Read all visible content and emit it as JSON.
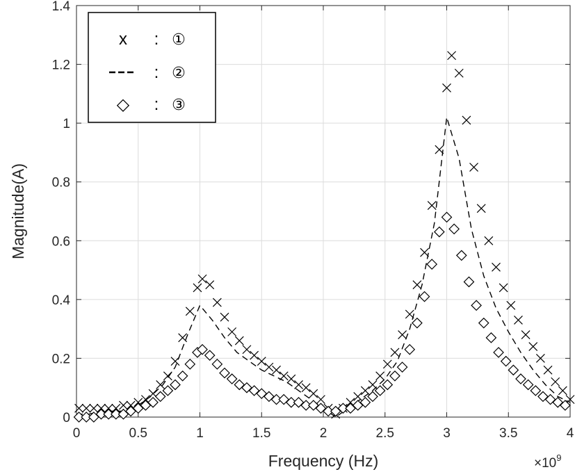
{
  "chart_data": {
    "type": "line",
    "xlabel": "Frequency (Hz)",
    "ylabel": "Magnitude(A)",
    "x_exponent_label": "×10",
    "x_exponent_power": "9",
    "xlim": [
      0,
      4
    ],
    "ylim": [
      0,
      1.4
    ],
    "x_scale_factor": 1000000000,
    "grid": true,
    "legend_position": "top-left",
    "x_ticks": [
      "0",
      "0.5",
      "1",
      "1.5",
      "2",
      "2.5",
      "3",
      "3.5",
      "4"
    ],
    "y_ticks": [
      "0",
      "0.2",
      "0.4",
      "0.6",
      "0.8",
      "1",
      "1.2",
      "1.4"
    ],
    "series": [
      {
        "name": "①",
        "legend_symbol": "x",
        "marker": "x",
        "color": "#000000",
        "x": [
          0.02,
          0.08,
          0.14,
          0.2,
          0.26,
          0.32,
          0.38,
          0.44,
          0.5,
          0.56,
          0.62,
          0.68,
          0.74,
          0.8,
          0.86,
          0.92,
          0.98,
          1.02,
          1.08,
          1.14,
          1.2,
          1.26,
          1.32,
          1.38,
          1.44,
          1.5,
          1.56,
          1.62,
          1.68,
          1.74,
          1.8,
          1.86,
          1.92,
          1.98,
          2.04,
          2.1,
          2.16,
          2.22,
          2.28,
          2.34,
          2.4,
          2.46,
          2.52,
          2.58,
          2.64,
          2.7,
          2.76,
          2.82,
          2.88,
          2.94,
          3.0,
          3.04,
          3.1,
          3.16,
          3.22,
          3.28,
          3.34,
          3.4,
          3.46,
          3.52,
          3.58,
          3.64,
          3.7,
          3.76,
          3.82,
          3.88,
          3.94,
          4.0
        ],
        "values": [
          0.03,
          0.03,
          0.03,
          0.03,
          0.03,
          0.03,
          0.04,
          0.04,
          0.05,
          0.06,
          0.08,
          0.11,
          0.14,
          0.19,
          0.27,
          0.36,
          0.44,
          0.47,
          0.45,
          0.39,
          0.34,
          0.29,
          0.26,
          0.23,
          0.21,
          0.19,
          0.17,
          0.16,
          0.14,
          0.13,
          0.11,
          0.1,
          0.08,
          0.06,
          0.03,
          0.01,
          0.03,
          0.05,
          0.07,
          0.09,
          0.11,
          0.14,
          0.18,
          0.22,
          0.28,
          0.35,
          0.45,
          0.56,
          0.72,
          0.91,
          1.12,
          1.23,
          1.17,
          1.01,
          0.85,
          0.71,
          0.6,
          0.51,
          0.44,
          0.38,
          0.33,
          0.28,
          0.24,
          0.2,
          0.16,
          0.12,
          0.09,
          0.06
        ]
      },
      {
        "name": "②",
        "legend_symbol": "---",
        "marker": "dashed",
        "color": "#000000",
        "x": [
          0.0,
          0.1,
          0.2,
          0.3,
          0.4,
          0.5,
          0.6,
          0.7,
          0.8,
          0.9,
          1.0,
          1.1,
          1.2,
          1.3,
          1.4,
          1.5,
          1.6,
          1.7,
          1.8,
          1.9,
          2.0,
          2.1,
          2.2,
          2.3,
          2.4,
          2.5,
          2.6,
          2.7,
          2.8,
          2.9,
          3.0,
          3.1,
          3.2,
          3.3,
          3.4,
          3.5,
          3.6,
          3.7,
          3.8,
          3.9,
          4.0
        ],
        "values": [
          0.01,
          0.01,
          0.02,
          0.02,
          0.02,
          0.04,
          0.07,
          0.11,
          0.17,
          0.28,
          0.38,
          0.33,
          0.27,
          0.22,
          0.19,
          0.16,
          0.14,
          0.12,
          0.09,
          0.06,
          0.03,
          0.0,
          0.03,
          0.06,
          0.09,
          0.13,
          0.19,
          0.3,
          0.45,
          0.66,
          1.02,
          0.88,
          0.64,
          0.48,
          0.37,
          0.29,
          0.22,
          0.16,
          0.11,
          0.07,
          0.05
        ]
      },
      {
        "name": "③",
        "legend_symbol": "◇",
        "marker": "diamond",
        "color": "#000000",
        "x": [
          0.02,
          0.08,
          0.14,
          0.2,
          0.26,
          0.32,
          0.38,
          0.44,
          0.5,
          0.56,
          0.62,
          0.68,
          0.74,
          0.8,
          0.86,
          0.92,
          0.98,
          1.02,
          1.08,
          1.14,
          1.2,
          1.26,
          1.32,
          1.38,
          1.44,
          1.5,
          1.56,
          1.62,
          1.68,
          1.74,
          1.8,
          1.86,
          1.92,
          1.98,
          2.04,
          2.1,
          2.16,
          2.22,
          2.28,
          2.34,
          2.4,
          2.46,
          2.52,
          2.58,
          2.64,
          2.7,
          2.76,
          2.82,
          2.88,
          2.94,
          3.0,
          3.06,
          3.12,
          3.18,
          3.24,
          3.3,
          3.36,
          3.42,
          3.48,
          3.54,
          3.6,
          3.66,
          3.72,
          3.78,
          3.84,
          3.9,
          3.96
        ],
        "values": [
          0.0,
          0.0,
          0.0,
          0.01,
          0.01,
          0.01,
          0.01,
          0.02,
          0.03,
          0.04,
          0.05,
          0.07,
          0.09,
          0.11,
          0.14,
          0.18,
          0.22,
          0.23,
          0.21,
          0.18,
          0.15,
          0.13,
          0.11,
          0.1,
          0.09,
          0.08,
          0.07,
          0.06,
          0.06,
          0.05,
          0.05,
          0.04,
          0.04,
          0.03,
          0.02,
          0.02,
          0.03,
          0.03,
          0.04,
          0.05,
          0.07,
          0.09,
          0.11,
          0.14,
          0.17,
          0.23,
          0.32,
          0.41,
          0.52,
          0.63,
          0.68,
          0.64,
          0.55,
          0.46,
          0.38,
          0.32,
          0.27,
          0.22,
          0.19,
          0.16,
          0.13,
          0.11,
          0.09,
          0.07,
          0.06,
          0.05,
          0.04
        ]
      }
    ]
  }
}
